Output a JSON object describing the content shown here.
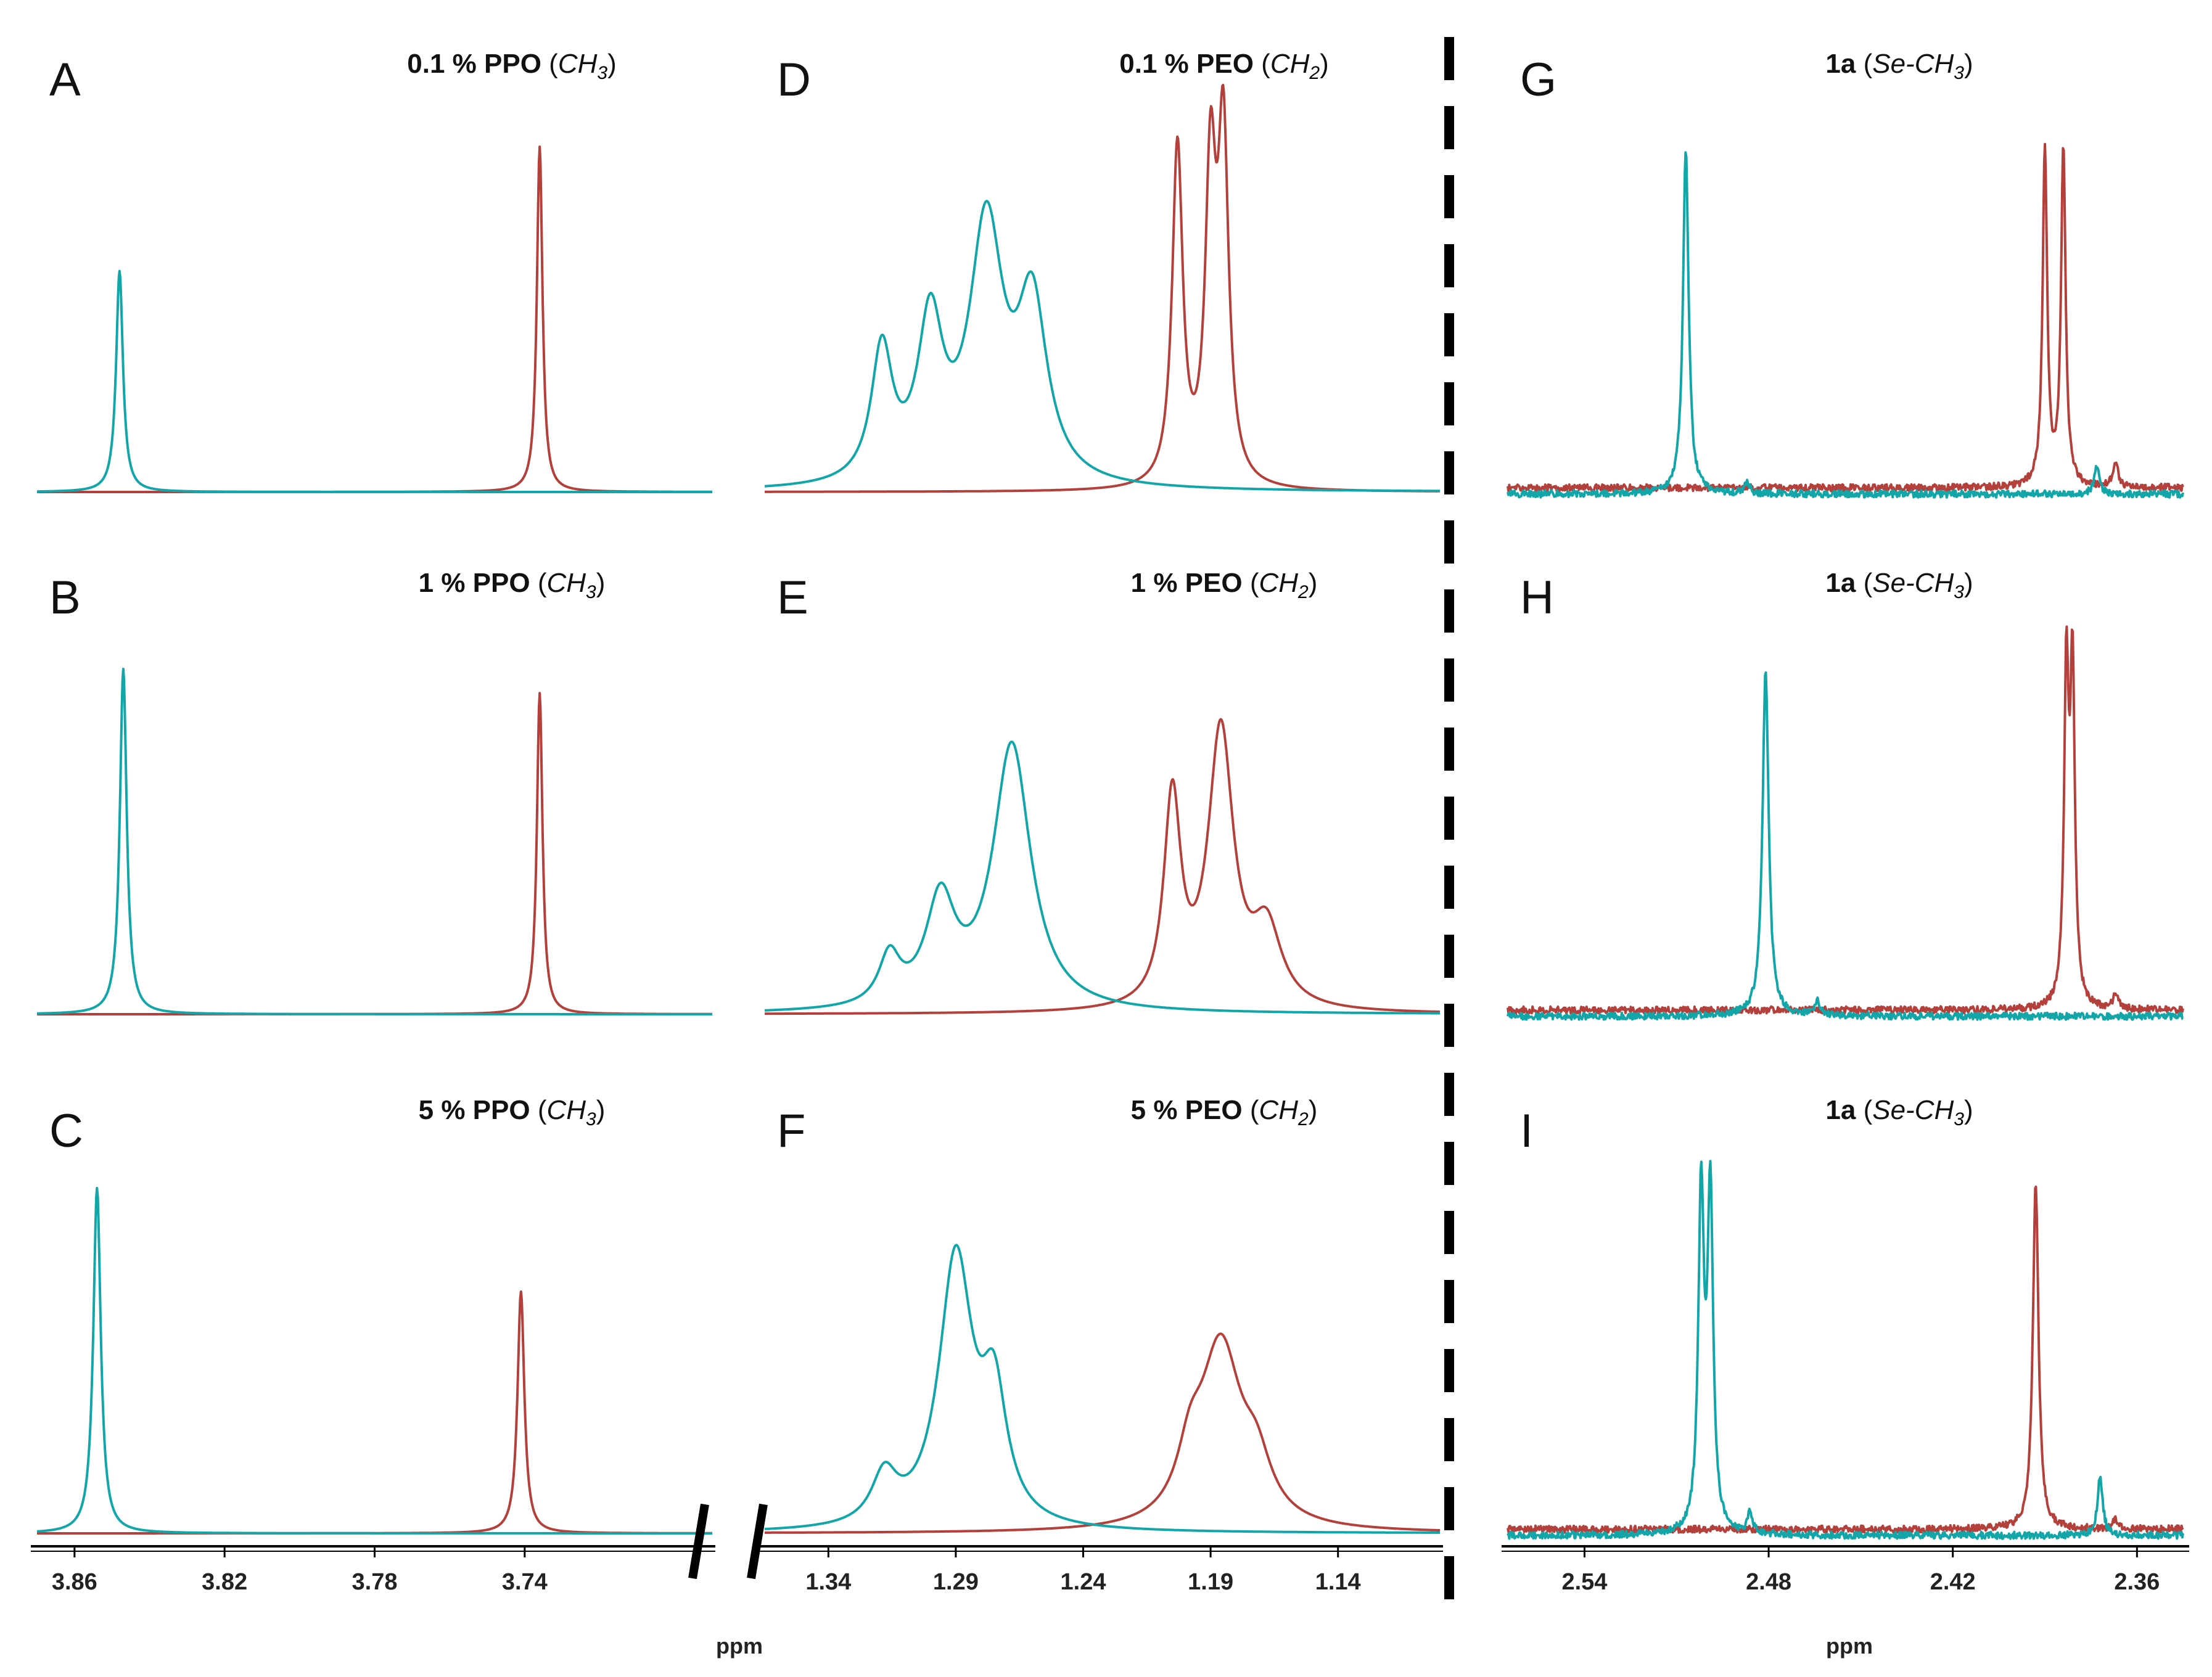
{
  "colors": {
    "teal": "#12a6a9",
    "red": "#b4403c"
  },
  "chart_data": [
    {
      "id": "A",
      "letter": "A",
      "type": "line",
      "title_bold": "0.1 % PPO",
      "title_ital": "CH",
      "title_sub": "3",
      "col": 0,
      "row": 0,
      "x_range": [
        3.87,
        3.69
      ],
      "peaks": {
        "teal": [
          {
            "x": 3.848,
            "h": 0.64,
            "w": 0.0011
          }
        ],
        "red": [
          {
            "x": 3.736,
            "h": 1.0,
            "w": 0.0009
          }
        ]
      }
    },
    {
      "id": "B",
      "letter": "B",
      "type": "line",
      "title_bold": "1 % PPO",
      "title_ital": "CH",
      "title_sub": "3",
      "col": 0,
      "row": 1,
      "x_range": [
        3.87,
        3.69
      ],
      "peaks": {
        "teal": [
          {
            "x": 3.847,
            "h": 1.0,
            "w": 0.0011
          }
        ],
        "red": [
          {
            "x": 3.736,
            "h": 0.93,
            "w": 0.0009
          }
        ]
      }
    },
    {
      "id": "C",
      "letter": "C",
      "type": "line",
      "title_bold": "5 % PPO",
      "title_ital": "CH",
      "title_sub": "3",
      "col": 0,
      "row": 2,
      "x_range": [
        3.87,
        3.69
      ],
      "peaks": {
        "teal": [
          {
            "x": 3.854,
            "h": 1.0,
            "w": 0.0012
          }
        ],
        "red": [
          {
            "x": 3.741,
            "h": 0.7,
            "w": 0.0011
          }
        ]
      }
    },
    {
      "id": "D",
      "letter": "D",
      "type": "line",
      "title_bold": "0.1 % PEO",
      "title_ital": "CH",
      "title_sub": "2",
      "col": 1,
      "row": 0,
      "x_range": [
        1.365,
        1.1
      ],
      "peaks": {
        "teal": [
          {
            "x": 1.319,
            "h": 0.38,
            "w": 0.005
          },
          {
            "x": 1.3,
            "h": 0.45,
            "w": 0.006
          },
          {
            "x": 1.278,
            "h": 0.74,
            "w": 0.008
          },
          {
            "x": 1.26,
            "h": 0.5,
            "w": 0.007
          }
        ],
        "red": [
          {
            "x": 1.203,
            "h": 0.98,
            "w": 0.0025
          },
          {
            "x": 1.19,
            "h": 0.88,
            "w": 0.0025
          },
          {
            "x": 1.185,
            "h": 0.98,
            "w": 0.0025
          }
        ]
      }
    },
    {
      "id": "E",
      "letter": "E",
      "type": "line",
      "title_bold": "1 % PEO",
      "title_ital": "CH",
      "title_sub": "2",
      "col": 1,
      "row": 1,
      "x_range": [
        1.365,
        1.1
      ],
      "peaks": {
        "teal": [
          {
            "x": 1.316,
            "h": 0.14,
            "w": 0.005
          },
          {
            "x": 1.296,
            "h": 0.3,
            "w": 0.007
          },
          {
            "x": 1.268,
            "h": 0.77,
            "w": 0.009
          }
        ],
        "red": [
          {
            "x": 1.205,
            "h": 0.6,
            "w": 0.004
          },
          {
            "x": 1.186,
            "h": 0.8,
            "w": 0.006
          },
          {
            "x": 1.168,
            "h": 0.22,
            "w": 0.007
          }
        ]
      }
    },
    {
      "id": "F",
      "letter": "F",
      "type": "line",
      "title_bold": "5 % PEO",
      "title_ital": "CH",
      "title_sub": "2",
      "col": 1,
      "row": 2,
      "x_range": [
        1.365,
        1.1
      ],
      "peaks": {
        "teal": [
          {
            "x": 1.318,
            "h": 0.14,
            "w": 0.006
          },
          {
            "x": 1.29,
            "h": 0.78,
            "w": 0.008
          },
          {
            "x": 1.275,
            "h": 0.35,
            "w": 0.006
          }
        ],
        "red": [
          {
            "x": 1.198,
            "h": 0.15,
            "w": 0.006
          },
          {
            "x": 1.186,
            "h": 0.52,
            "w": 0.01
          },
          {
            "x": 1.172,
            "h": 0.14,
            "w": 0.007
          }
        ]
      }
    },
    {
      "id": "G",
      "letter": "G",
      "type": "line",
      "title_bold": "1a",
      "title_ital": "Se-CH",
      "title_sub": "3",
      "col": 2,
      "row": 0,
      "x_range": [
        2.565,
        2.345
      ],
      "peaks": {
        "teal": [
          {
            "x": 2.507,
            "h": 1.0,
            "w": 0.0011
          },
          {
            "x": 2.487,
            "h": 0.03,
            "w": 0.001
          },
          {
            "x": 2.373,
            "h": 0.08,
            "w": 0.001
          }
        ],
        "red": [
          {
            "x": 2.39,
            "h": 0.97,
            "w": 0.0009
          },
          {
            "x": 2.384,
            "h": 0.98,
            "w": 0.0009
          },
          {
            "x": 2.367,
            "h": 0.07,
            "w": 0.001
          }
        ]
      }
    },
    {
      "id": "H",
      "letter": "H",
      "type": "line",
      "title_bold": "1a",
      "title_ital": "Se-CH",
      "title_sub": "3",
      "col": 2,
      "row": 1,
      "x_range": [
        2.565,
        2.345
      ],
      "peaks": {
        "teal": [
          {
            "x": 2.481,
            "h": 1.0,
            "w": 0.0012
          },
          {
            "x": 2.464,
            "h": 0.04,
            "w": 0.001
          }
        ],
        "red": [
          {
            "x": 2.383,
            "h": 0.95,
            "w": 0.0009
          },
          {
            "x": 2.381,
            "h": 0.95,
            "w": 0.0009
          },
          {
            "x": 2.367,
            "h": 0.04,
            "w": 0.001
          }
        ]
      }
    },
    {
      "id": "I",
      "letter": "I",
      "type": "line",
      "title_bold": "1a",
      "title_ital": "Se-CH",
      "title_sub": "3",
      "col": 2,
      "row": 2,
      "x_range": [
        2.565,
        2.345
      ],
      "peaks": {
        "teal": [
          {
            "x": 2.502,
            "h": 0.97,
            "w": 0.0011
          },
          {
            "x": 2.499,
            "h": 0.97,
            "w": 0.0011
          },
          {
            "x": 2.486,
            "h": 0.06,
            "w": 0.001
          },
          {
            "x": 2.372,
            "h": 0.17,
            "w": 0.001
          }
        ],
        "red": [
          {
            "x": 2.393,
            "h": 1.0,
            "w": 0.0011
          },
          {
            "x": 2.367,
            "h": 0.03,
            "w": 0.001
          }
        ]
      }
    }
  ],
  "axes": [
    {
      "col": 0,
      "x_range": [
        3.87,
        3.69
      ],
      "ticks": [
        3.86,
        3.82,
        3.78,
        3.74
      ],
      "tick_labels": [
        "3.86",
        "3.82",
        "3.78",
        "3.74"
      ]
    },
    {
      "col": 1,
      "x_range": [
        1.365,
        1.1
      ],
      "ticks": [
        1.34,
        1.29,
        1.24,
        1.19,
        1.14
      ],
      "tick_labels": [
        "1.34",
        "1.29",
        "1.24",
        "1.19",
        "1.14"
      ]
    },
    {
      "col": 2,
      "x_range": [
        2.565,
        2.345
      ],
      "ticks": [
        2.54,
        2.48,
        2.42,
        2.36
      ],
      "tick_labels": [
        "2.54",
        "2.48",
        "2.42",
        "2.36"
      ]
    }
  ],
  "xlabels": [
    "ppm",
    "ppm"
  ]
}
